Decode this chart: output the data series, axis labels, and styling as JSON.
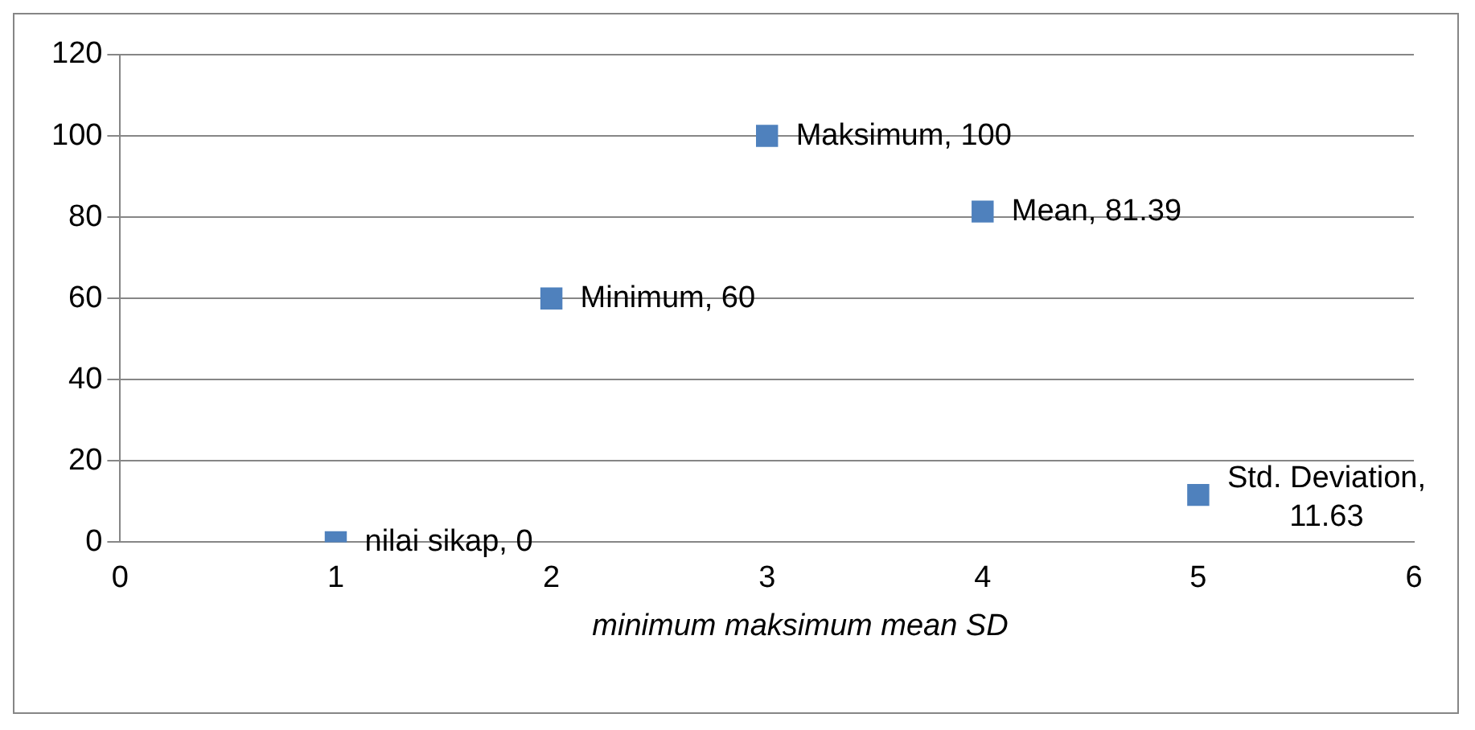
{
  "chart_data": {
    "type": "scatter",
    "xlabel": "minimum maksimum mean SD",
    "x": [
      1,
      2,
      3,
      4,
      5
    ],
    "values": [
      0,
      60,
      100,
      81.39,
      11.63
    ],
    "value_labels": [
      "nilai sikap, 0",
      "Minimum, 60",
      "Maksimum, 100",
      "Mean, 81.39",
      "Std. Deviation, 11.63"
    ],
    "color": "#4f81bd",
    "marker": "square",
    "xlim": [
      0,
      6
    ],
    "xticks": [
      0,
      1,
      2,
      3,
      4,
      5,
      6
    ],
    "ylim": [
      0,
      120
    ],
    "yticks": [
      0,
      20,
      40,
      60,
      80,
      100,
      120
    ],
    "grid": "y",
    "legend": false
  }
}
